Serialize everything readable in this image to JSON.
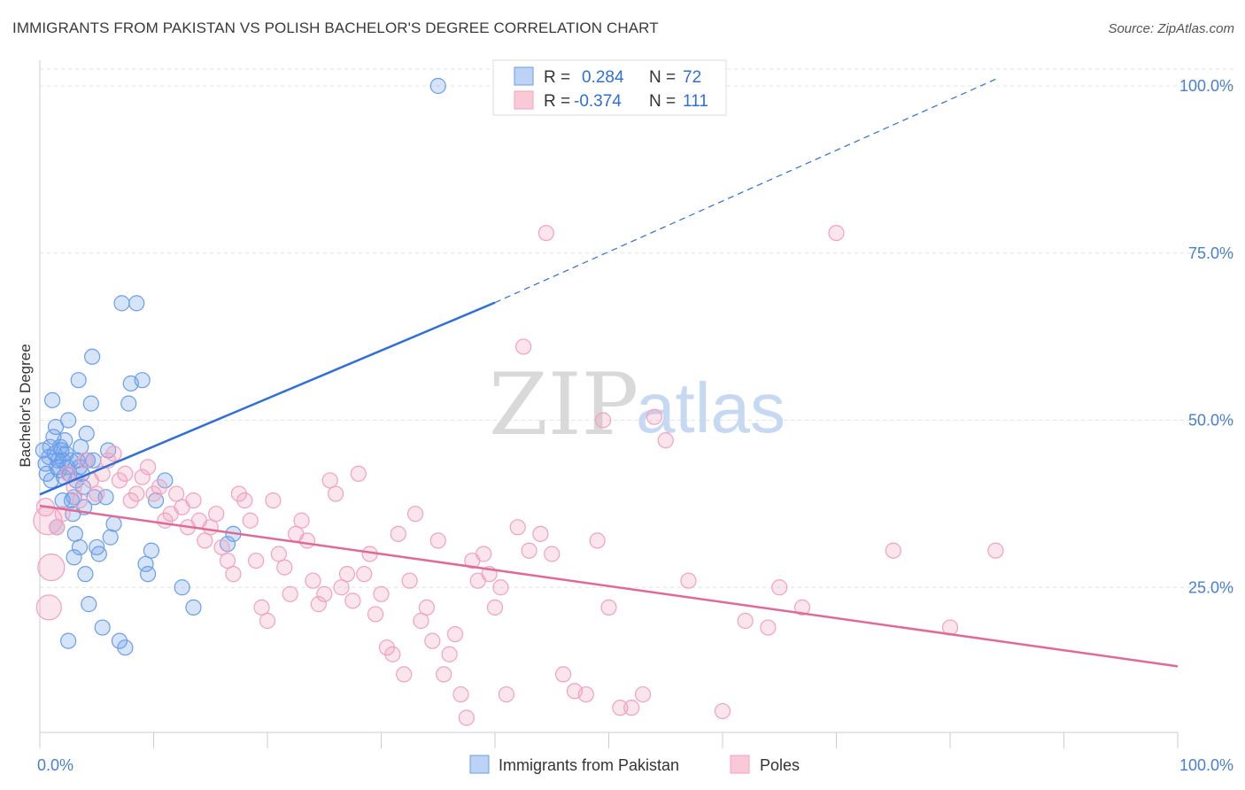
{
  "header": {
    "title": "IMMIGRANTS FROM PAKISTAN VS POLISH BACHELOR'S DEGREE CORRELATION CHART",
    "source": "Source: ZipAtlas.com"
  },
  "watermark": {
    "zip": "ZIP",
    "atlas": "atlas"
  },
  "legend": {
    "r_label": "R =",
    "n_label": "N =",
    "rows": [
      {
        "r": "0.284",
        "n": "72"
      },
      {
        "r": "-0.374",
        "n": "111"
      }
    ]
  },
  "chart_data": {
    "type": "scatter",
    "title": "IMMIGRANTS FROM PAKISTAN VS POLISH BACHELOR'S DEGREE CORRELATION CHART",
    "xlabel": "",
    "ylabel": "Bachelor's Degree",
    "xlim": [
      0,
      100
    ],
    "ylim": [
      0,
      102
    ],
    "x_tick_labels": [
      "0.0%",
      "100.0%"
    ],
    "y_ticks": [
      25,
      50,
      75,
      100
    ],
    "y_tick_labels": [
      "25.0%",
      "50.0%",
      "75.0%",
      "100.0%"
    ],
    "grid": true,
    "legend_position": "bottom",
    "colors": {
      "blue": "#6b9ee8",
      "blue_line": "#2f6fd6",
      "pink": "#f0a2bd",
      "pink_line": "#e06a96"
    },
    "series": [
      {
        "name": "Immigrants from Pakistan",
        "color": "blue",
        "r": 0.284,
        "n": 72,
        "trend": {
          "x0": 0,
          "y0": 38.9,
          "x1": 40,
          "y1": 67.6,
          "dashed_to_x": 84,
          "dashed_to_y": 101
        },
        "points": [
          [
            0.3,
            45.5
          ],
          [
            0.5,
            43.5
          ],
          [
            0.6,
            42
          ],
          [
            0.8,
            44.5
          ],
          [
            0.9,
            46
          ],
          [
            1,
            41
          ],
          [
            1.1,
            53
          ],
          [
            1.2,
            47.5
          ],
          [
            1.3,
            45
          ],
          [
            1.4,
            49
          ],
          [
            1.5,
            43
          ],
          [
            1.6,
            44
          ],
          [
            1.7,
            42.5
          ],
          [
            1.8,
            46
          ],
          [
            1.9,
            45.5
          ],
          [
            2,
            44
          ],
          [
            2.1,
            41.5
          ],
          [
            2.2,
            47
          ],
          [
            2.3,
            45
          ],
          [
            2.4,
            43
          ],
          [
            2.5,
            50
          ],
          [
            2.6,
            42
          ],
          [
            2.7,
            44
          ],
          [
            2.8,
            38
          ],
          [
            2.9,
            36
          ],
          [
            3,
            38.5
          ],
          [
            3.1,
            33
          ],
          [
            3.2,
            41
          ],
          [
            3.3,
            44
          ],
          [
            3.4,
            56
          ],
          [
            3.5,
            43
          ],
          [
            3.6,
            46
          ],
          [
            3.7,
            42
          ],
          [
            3.8,
            40
          ],
          [
            3.9,
            37
          ],
          [
            4,
            27
          ],
          [
            4.1,
            48
          ],
          [
            4.2,
            44
          ],
          [
            4.3,
            22.5
          ],
          [
            4.5,
            52.5
          ],
          [
            4.6,
            59.5
          ],
          [
            4.7,
            44
          ],
          [
            4.8,
            38.5
          ],
          [
            5,
            31
          ],
          [
            5.2,
            30
          ],
          [
            5.5,
            19
          ],
          [
            5.8,
            38.5
          ],
          [
            6,
            45.5
          ],
          [
            6.2,
            32.5
          ],
          [
            6.5,
            34.5
          ],
          [
            7,
            17
          ],
          [
            7.2,
            67.5
          ],
          [
            7.5,
            16
          ],
          [
            7.8,
            52.5
          ],
          [
            8,
            55.5
          ],
          [
            8.5,
            67.5
          ],
          [
            9,
            56
          ],
          [
            9.3,
            28.5
          ],
          [
            9.5,
            27
          ],
          [
            9.8,
            30.5
          ],
          [
            10.2,
            38
          ],
          [
            11,
            41
          ],
          [
            12.5,
            25
          ],
          [
            13.5,
            22
          ],
          [
            16.5,
            31.5
          ],
          [
            17,
            33
          ],
          [
            1.5,
            34
          ],
          [
            2,
            38
          ],
          [
            3,
            29.5
          ],
          [
            3.5,
            31
          ],
          [
            2.5,
            17
          ],
          [
            35,
            100
          ]
        ]
      },
      {
        "name": "Poles",
        "color": "pink",
        "r": -0.374,
        "n": 111,
        "trend": {
          "x0": 0,
          "y0": 37.2,
          "x1": 100,
          "y1": 13.2
        },
        "points": [
          [
            0.5,
            37
          ],
          [
            0.7,
            35
          ],
          [
            0.8,
            22
          ],
          [
            1,
            28
          ],
          [
            1.5,
            34
          ],
          [
            2,
            36
          ],
          [
            2.5,
            42
          ],
          [
            3,
            40
          ],
          [
            3.5,
            38
          ],
          [
            4,
            44
          ],
          [
            4.5,
            41
          ],
          [
            5,
            39
          ],
          [
            5.5,
            42
          ],
          [
            6,
            44
          ],
          [
            6.5,
            45
          ],
          [
            7,
            41
          ],
          [
            7.5,
            42
          ],
          [
            8,
            38
          ],
          [
            8.5,
            39
          ],
          [
            9,
            41.5
          ],
          [
            9.5,
            43
          ],
          [
            10,
            39
          ],
          [
            10.5,
            40
          ],
          [
            11,
            35
          ],
          [
            11.5,
            36
          ],
          [
            12,
            39
          ],
          [
            12.5,
            37
          ],
          [
            13,
            34
          ],
          [
            13.5,
            38
          ],
          [
            14,
            35
          ],
          [
            14.5,
            32
          ],
          [
            15,
            34
          ],
          [
            15.5,
            36
          ],
          [
            16,
            31
          ],
          [
            16.5,
            29
          ],
          [
            17,
            27
          ],
          [
            17.5,
            39
          ],
          [
            18,
            38
          ],
          [
            18.5,
            35
          ],
          [
            19,
            29
          ],
          [
            19.5,
            22
          ],
          [
            20,
            20
          ],
          [
            20.5,
            38
          ],
          [
            21,
            30
          ],
          [
            21.5,
            28
          ],
          [
            22,
            24
          ],
          [
            22.5,
            33
          ],
          [
            23,
            35
          ],
          [
            23.5,
            32
          ],
          [
            24,
            26
          ],
          [
            24.5,
            22.5
          ],
          [
            25,
            24
          ],
          [
            25.5,
            41
          ],
          [
            26,
            39
          ],
          [
            26.5,
            25
          ],
          [
            27,
            27
          ],
          [
            27.5,
            23
          ],
          [
            28,
            42
          ],
          [
            28.5,
            27
          ],
          [
            29,
            30
          ],
          [
            29.5,
            21
          ],
          [
            30,
            24
          ],
          [
            30.5,
            16
          ],
          [
            31,
            15
          ],
          [
            31.5,
            33
          ],
          [
            32,
            12
          ],
          [
            32.5,
            26
          ],
          [
            33,
            36
          ],
          [
            33.5,
            20
          ],
          [
            34,
            22
          ],
          [
            34.5,
            17
          ],
          [
            35,
            32
          ],
          [
            35.5,
            12
          ],
          [
            36,
            15
          ],
          [
            36.5,
            18
          ],
          [
            37,
            9
          ],
          [
            37.5,
            5.5
          ],
          [
            38,
            29
          ],
          [
            38.5,
            26
          ],
          [
            39,
            30
          ],
          [
            39.5,
            27
          ],
          [
            40,
            22
          ],
          [
            40.5,
            25
          ],
          [
            41,
            9
          ],
          [
            42,
            34
          ],
          [
            42.5,
            61
          ],
          [
            43,
            30.5
          ],
          [
            44,
            33
          ],
          [
            44.5,
            78
          ],
          [
            45,
            30
          ],
          [
            46,
            12
          ],
          [
            47,
            9.5
          ],
          [
            48,
            9
          ],
          [
            49,
            32
          ],
          [
            49.5,
            50
          ],
          [
            50,
            22
          ],
          [
            51,
            7
          ],
          [
            52,
            7
          ],
          [
            53,
            9
          ],
          [
            54,
            50.5
          ],
          [
            55,
            47
          ],
          [
            57,
            26
          ],
          [
            60,
            6.5
          ],
          [
            62,
            20
          ],
          [
            64,
            19
          ],
          [
            65,
            25
          ],
          [
            67,
            22
          ],
          [
            70,
            78
          ],
          [
            75,
            30.5
          ],
          [
            80,
            19
          ],
          [
            84,
            30.5
          ]
        ]
      }
    ]
  },
  "bottom_legend": {
    "items": [
      {
        "label": "Immigrants from Pakistan"
      },
      {
        "label": "Poles"
      }
    ]
  }
}
